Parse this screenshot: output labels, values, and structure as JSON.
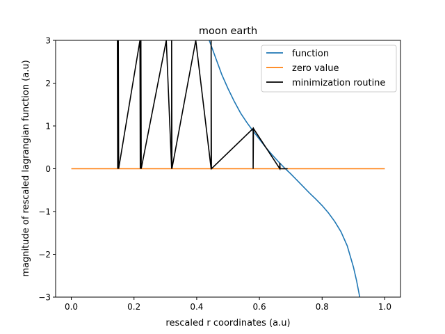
{
  "chart_data": {
    "type": "line",
    "title": "moon earth",
    "xlabel": "rescaled r coordinates (a.u)",
    "ylabel": "magnitude of rescaled lagrangian function (a.u)",
    "xlim": [
      -0.05,
      1.05
    ],
    "ylim": [
      -3,
      3
    ],
    "x_ticks": [
      0.0,
      0.2,
      0.4,
      0.6,
      0.8,
      1.0
    ],
    "x_tick_labels": [
      "0.0",
      "0.2",
      "0.4",
      "0.6",
      "0.8",
      "1.0"
    ],
    "y_ticks": [
      -3,
      -2,
      -1,
      0,
      1,
      2,
      3
    ],
    "y_tick_labels": [
      "−3",
      "−2",
      "−1",
      "0",
      "1",
      "2",
      "3"
    ],
    "grid": false,
    "legend_position": "upper-right",
    "series": [
      {
        "name": "function",
        "color": "#1f77b4",
        "x": [
          0.44,
          0.46,
          0.48,
          0.5,
          0.52,
          0.54,
          0.56,
          0.58,
          0.6,
          0.62,
          0.64,
          0.66,
          0.68,
          0.7,
          0.72,
          0.74,
          0.76,
          0.78,
          0.8,
          0.82,
          0.84,
          0.86,
          0.88,
          0.9,
          0.91,
          0.92
        ],
        "y": [
          3.0,
          2.6,
          2.2,
          1.87,
          1.57,
          1.3,
          1.08,
          0.88,
          0.69,
          0.5,
          0.33,
          0.17,
          0.02,
          -0.12,
          -0.27,
          -0.42,
          -0.57,
          -0.71,
          -0.86,
          -1.03,
          -1.23,
          -1.47,
          -1.8,
          -2.3,
          -2.62,
          -3.0
        ]
      },
      {
        "name": "zero value",
        "color": "#ff7f0e",
        "x": [
          0.0,
          1.0
        ],
        "y": [
          0,
          0
        ]
      },
      {
        "name": "minimization routine",
        "color": "#000000",
        "x": [
          0.147,
          0.148,
          0.15,
          0.151,
          0.219,
          0.22,
          0.222,
          0.223,
          0.303,
          0.32,
          0.32,
          0.321,
          0.397,
          0.446,
          0.446,
          0.447,
          0.58,
          0.58,
          0.581,
          0.665,
          0.665,
          0.666,
          0.69
        ],
        "y": [
          3.0,
          0.0,
          3.0,
          0.0,
          3.0,
          0.0,
          3.0,
          0.0,
          3.0,
          0.0,
          3.0,
          0.0,
          3.0,
          0.0,
          3.0,
          0.0,
          0.94,
          0.0,
          0.94,
          0.0,
          0.14,
          0.0,
          0.0
        ]
      }
    ]
  }
}
